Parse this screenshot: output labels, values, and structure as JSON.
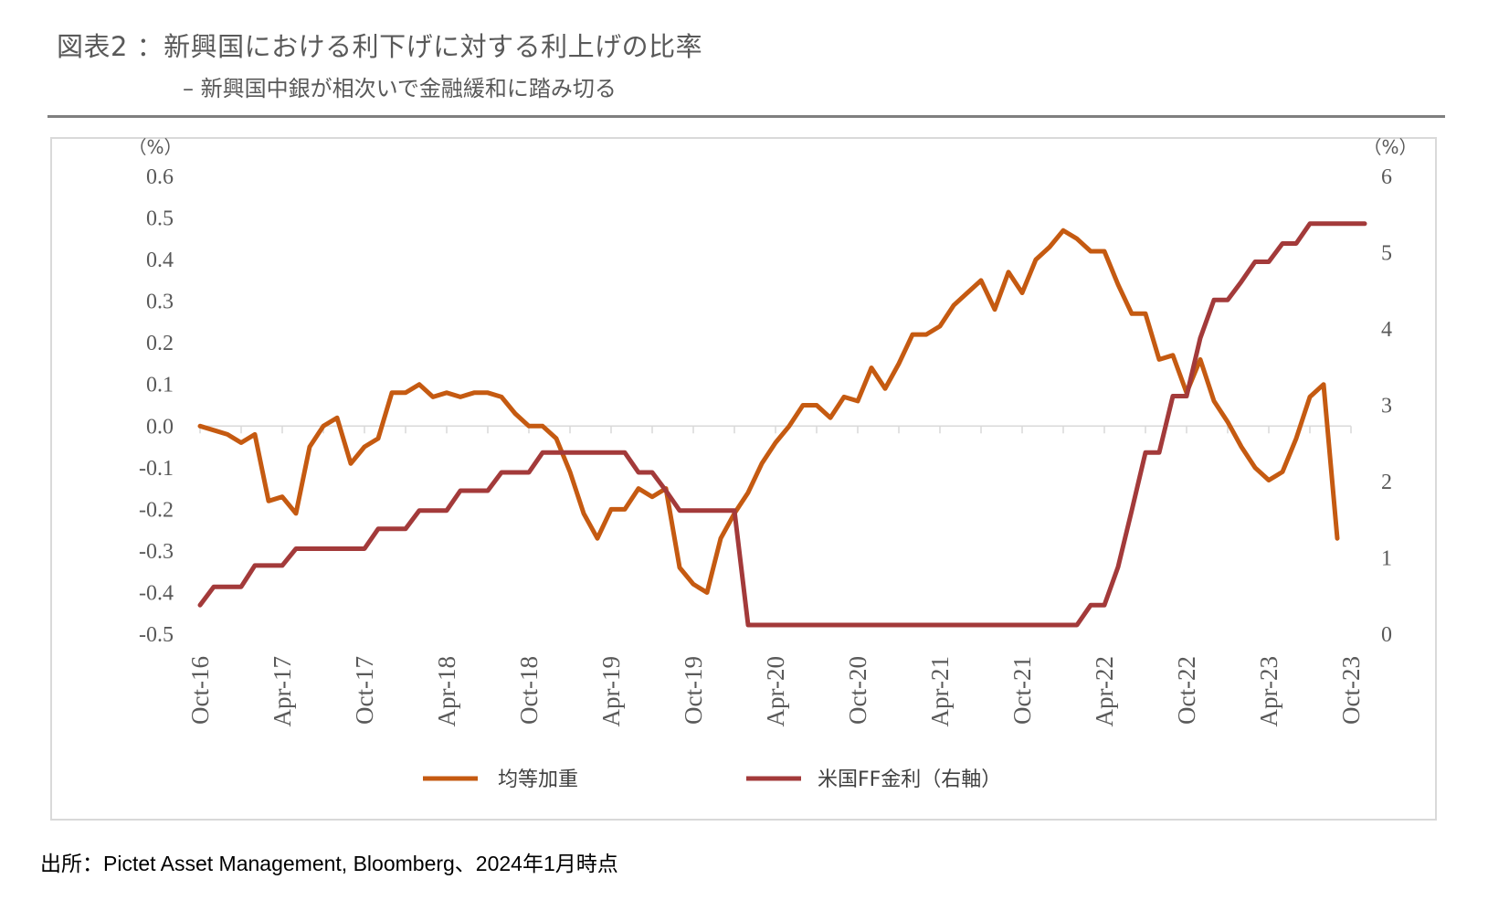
{
  "header": {
    "title": "図表2 ：新興国における利下げに対する利上げの比率",
    "subtitle": "– 新興国中銀が相次いで金融緩和に踏み切る"
  },
  "footer": {
    "source": "出所：Pictet Asset Management, Bloomberg、2024年1月時点"
  },
  "chart_data": {
    "type": "line",
    "left_axis": {
      "unit": "（%）",
      "ylim": [
        -0.5,
        0.6
      ],
      "ticks": [
        -0.5,
        -0.4,
        -0.3,
        -0.2,
        -0.1,
        0.0,
        0.1,
        0.2,
        0.3,
        0.4,
        0.5,
        0.6
      ],
      "tick_labels": [
        "-0.5",
        "-0.4",
        "-0.3",
        "-0.2",
        "-0.1",
        "0.0",
        "0.1",
        "0.2",
        "0.3",
        "0.4",
        "0.5",
        "0.6"
      ]
    },
    "right_axis": {
      "unit": "（%）",
      "ylim": [
        0,
        6
      ],
      "ticks": [
        0,
        1,
        2,
        3,
        4,
        5,
        6
      ],
      "tick_labels": [
        "0",
        "1",
        "2",
        "3",
        "4",
        "5",
        "6"
      ]
    },
    "x_tick_labels": [
      "Oct-16",
      "Apr-17",
      "Oct-17",
      "Apr-18",
      "Oct-18",
      "Apr-19",
      "Oct-19",
      "Apr-20",
      "Oct-20",
      "Apr-21",
      "Oct-21",
      "Apr-22",
      "Oct-22",
      "Apr-23",
      "Oct-23"
    ],
    "x_tick_months": [
      0,
      6,
      12,
      18,
      24,
      30,
      36,
      42,
      48,
      54,
      60,
      66,
      72,
      78,
      84
    ],
    "x_range_months": [
      0,
      84
    ],
    "grid": false,
    "legend_position": "bottom",
    "series": [
      {
        "name": "均等加重",
        "axis": "left",
        "color": "#C55A11",
        "points": [
          [
            0,
            0.0
          ],
          [
            1,
            -0.01
          ],
          [
            2,
            -0.02
          ],
          [
            3,
            -0.04
          ],
          [
            4,
            -0.02
          ],
          [
            5,
            -0.18
          ],
          [
            6,
            -0.17
          ],
          [
            7,
            -0.21
          ],
          [
            8,
            -0.05
          ],
          [
            9,
            0.0
          ],
          [
            10,
            0.02
          ],
          [
            11,
            -0.09
          ],
          [
            12,
            -0.05
          ],
          [
            13,
            -0.03
          ],
          [
            14,
            0.08
          ],
          [
            15,
            0.08
          ],
          [
            16,
            0.1
          ],
          [
            17,
            0.07
          ],
          [
            18,
            0.08
          ],
          [
            19,
            0.07
          ],
          [
            20,
            0.08
          ],
          [
            21,
            0.08
          ],
          [
            22,
            0.07
          ],
          [
            23,
            0.03
          ],
          [
            24,
            0.0
          ],
          [
            25,
            0.0
          ],
          [
            26,
            -0.03
          ],
          [
            27,
            -0.11
          ],
          [
            28,
            -0.21
          ],
          [
            29,
            -0.27
          ],
          [
            30,
            -0.2
          ],
          [
            31,
            -0.2
          ],
          [
            32,
            -0.15
          ],
          [
            33,
            -0.17
          ],
          [
            34,
            -0.15
          ],
          [
            35,
            -0.34
          ],
          [
            36,
            -0.38
          ],
          [
            37,
            -0.4
          ],
          [
            38,
            -0.27
          ],
          [
            39,
            -0.21
          ],
          [
            40,
            -0.16
          ],
          [
            41,
            -0.09
          ],
          [
            42,
            -0.04
          ],
          [
            43,
            0.0
          ],
          [
            44,
            0.05
          ],
          [
            45,
            0.05
          ],
          [
            46,
            0.02
          ],
          [
            47,
            0.07
          ],
          [
            48,
            0.06
          ],
          [
            49,
            0.14
          ],
          [
            50,
            0.09
          ],
          [
            51,
            0.15
          ],
          [
            52,
            0.22
          ],
          [
            53,
            0.22
          ],
          [
            54,
            0.24
          ],
          [
            55,
            0.29
          ],
          [
            56,
            0.32
          ],
          [
            57,
            0.35
          ],
          [
            58,
            0.28
          ],
          [
            59,
            0.37
          ],
          [
            60,
            0.32
          ],
          [
            61,
            0.4
          ],
          [
            62,
            0.43
          ],
          [
            63,
            0.47
          ],
          [
            64,
            0.45
          ],
          [
            65,
            0.42
          ],
          [
            66,
            0.42
          ],
          [
            67,
            0.34
          ],
          [
            68,
            0.27
          ],
          [
            69,
            0.27
          ],
          [
            70,
            0.16
          ],
          [
            71,
            0.17
          ],
          [
            72,
            0.08
          ],
          [
            73,
            0.16
          ],
          [
            74,
            0.06
          ],
          [
            75,
            0.01
          ],
          [
            76,
            -0.05
          ],
          [
            77,
            -0.1
          ],
          [
            78,
            -0.13
          ],
          [
            79,
            -0.11
          ],
          [
            80,
            -0.03
          ],
          [
            81,
            0.07
          ],
          [
            82,
            0.1
          ],
          [
            83,
            -0.27
          ]
        ]
      },
      {
        "name": "米国FF金利（右軸）",
        "axis": "right",
        "color": "#A33A3A",
        "points": [
          [
            0,
            0.38
          ],
          [
            1,
            0.62
          ],
          [
            2,
            0.62
          ],
          [
            3,
            0.62
          ],
          [
            4,
            0.9
          ],
          [
            5,
            0.9
          ],
          [
            6,
            0.9
          ],
          [
            7,
            1.12
          ],
          [
            8,
            1.12
          ],
          [
            9,
            1.12
          ],
          [
            10,
            1.12
          ],
          [
            11,
            1.12
          ],
          [
            12,
            1.12
          ],
          [
            13,
            1.38
          ],
          [
            14,
            1.38
          ],
          [
            15,
            1.38
          ],
          [
            16,
            1.62
          ],
          [
            17,
            1.62
          ],
          [
            18,
            1.62
          ],
          [
            19,
            1.88
          ],
          [
            20,
            1.88
          ],
          [
            21,
            1.88
          ],
          [
            22,
            2.12
          ],
          [
            23,
            2.12
          ],
          [
            24,
            2.12
          ],
          [
            25,
            2.38
          ],
          [
            26,
            2.38
          ],
          [
            27,
            2.38
          ],
          [
            28,
            2.38
          ],
          [
            29,
            2.38
          ],
          [
            30,
            2.38
          ],
          [
            31,
            2.38
          ],
          [
            32,
            2.12
          ],
          [
            33,
            2.12
          ],
          [
            34,
            1.88
          ],
          [
            35,
            1.62
          ],
          [
            36,
            1.62
          ],
          [
            37,
            1.62
          ],
          [
            38,
            1.62
          ],
          [
            39,
            1.62
          ],
          [
            40,
            0.12
          ],
          [
            41,
            0.12
          ],
          [
            42,
            0.12
          ],
          [
            43,
            0.12
          ],
          [
            44,
            0.12
          ],
          [
            45,
            0.12
          ],
          [
            46,
            0.12
          ],
          [
            47,
            0.12
          ],
          [
            48,
            0.12
          ],
          [
            49,
            0.12
          ],
          [
            50,
            0.12
          ],
          [
            51,
            0.12
          ],
          [
            52,
            0.12
          ],
          [
            53,
            0.12
          ],
          [
            54,
            0.12
          ],
          [
            55,
            0.12
          ],
          [
            56,
            0.12
          ],
          [
            57,
            0.12
          ],
          [
            58,
            0.12
          ],
          [
            59,
            0.12
          ],
          [
            60,
            0.12
          ],
          [
            61,
            0.12
          ],
          [
            62,
            0.12
          ],
          [
            63,
            0.12
          ],
          [
            64,
            0.12
          ],
          [
            65,
            0.38
          ],
          [
            66,
            0.38
          ],
          [
            67,
            0.88
          ],
          [
            68,
            1.62
          ],
          [
            69,
            2.38
          ],
          [
            70,
            2.38
          ],
          [
            71,
            3.12
          ],
          [
            72,
            3.12
          ],
          [
            73,
            3.88
          ],
          [
            74,
            4.38
          ],
          [
            75,
            4.38
          ],
          [
            76,
            4.62
          ],
          [
            77,
            4.88
          ],
          [
            78,
            4.88
          ],
          [
            79,
            5.12
          ],
          [
            80,
            5.12
          ],
          [
            81,
            5.38
          ],
          [
            82,
            5.38
          ],
          [
            83,
            5.38
          ],
          [
            84,
            5.38
          ],
          [
            85,
            5.38
          ]
        ]
      }
    ]
  }
}
